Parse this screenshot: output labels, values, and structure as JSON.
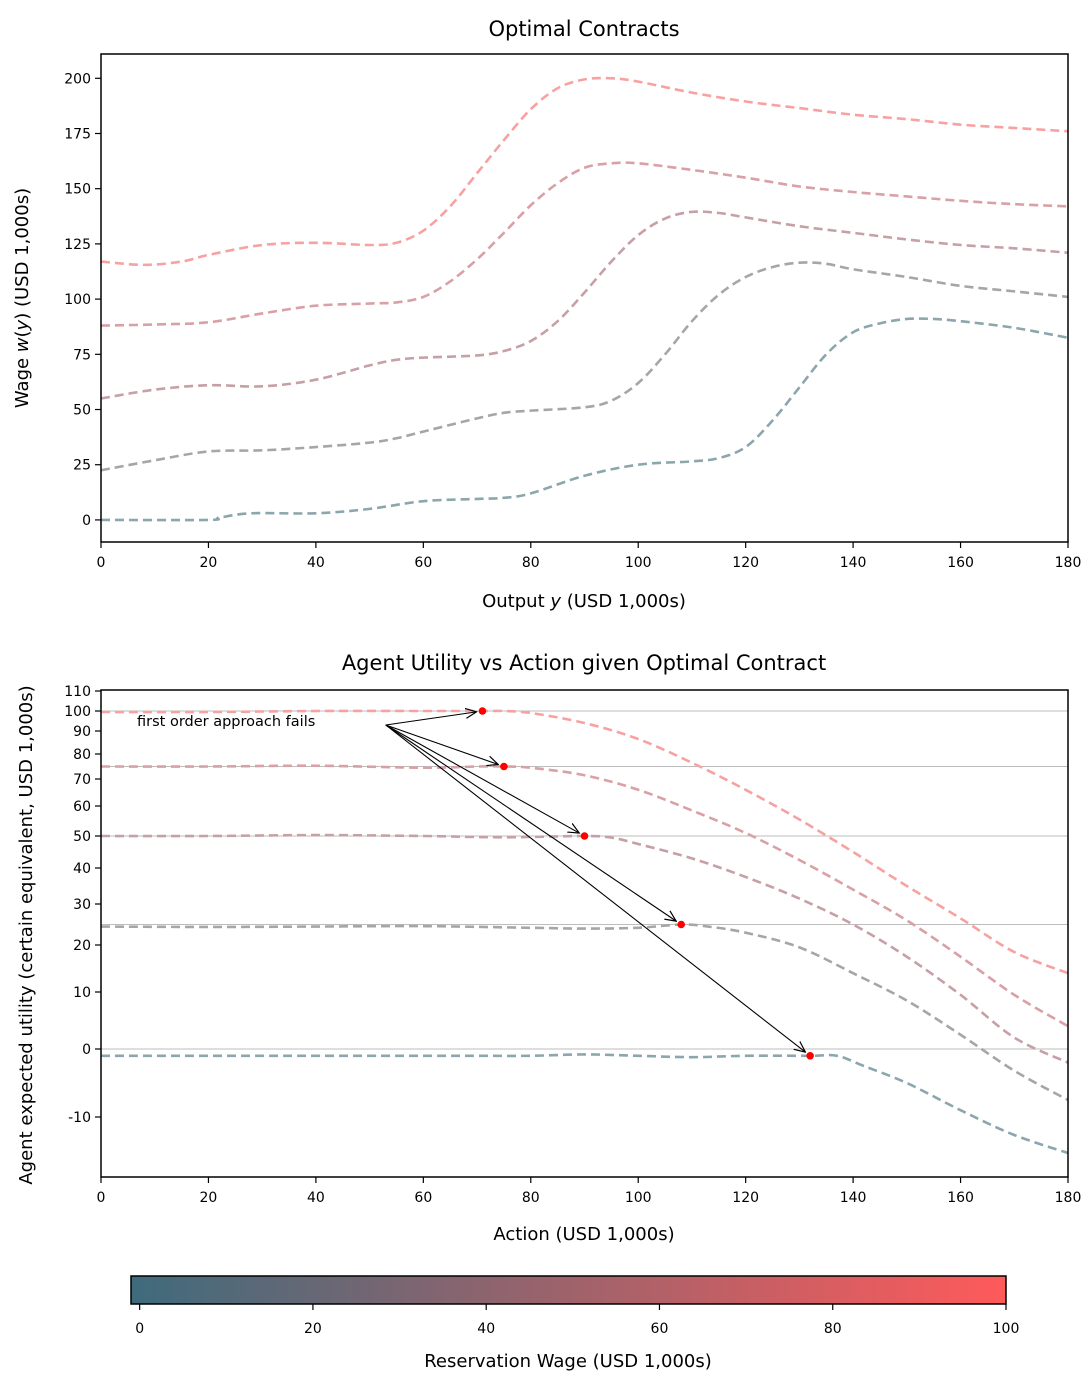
{
  "colorbar": {
    "label": "Reservation Wage (USD 1,000s)",
    "min": -1,
    "max": 100,
    "ticks": [
      0,
      20,
      40,
      60,
      80,
      100
    ],
    "color_low": "#3e6b7c",
    "color_high": "#ff5a5a"
  },
  "chart_data": [
    {
      "type": "line",
      "title": "Optimal Contracts",
      "xlabel": "Output y (USD 1,000s)",
      "ylabel": "Wage w(y) (USD 1,000s)",
      "xlim": [
        0,
        180
      ],
      "ylim": [
        -10,
        211
      ],
      "xticks": [
        0,
        20,
        40,
        60,
        80,
        100,
        120,
        140,
        160,
        180
      ],
      "yticks": [
        0,
        25,
        50,
        75,
        100,
        125,
        150,
        175,
        200
      ],
      "grid": false,
      "series": [
        {
          "reservation_wage": 0,
          "color": "#8ba6ad",
          "points": [
            [
              0,
              0
            ],
            [
              20,
              0
            ],
            [
              22,
              1
            ],
            [
              28,
              3
            ],
            [
              40,
              3
            ],
            [
              50,
              5
            ],
            [
              60,
              8.5
            ],
            [
              70,
              9.5
            ],
            [
              75,
              10
            ],
            [
              80,
              12
            ],
            [
              90,
              20
            ],
            [
              100,
              25
            ],
            [
              110,
              26.5
            ],
            [
              115,
              28
            ],
            [
              120,
              33
            ],
            [
              125,
              45
            ],
            [
              130,
              60
            ],
            [
              135,
              75
            ],
            [
              140,
              85
            ],
            [
              145,
              89
            ],
            [
              150,
              91
            ],
            [
              155,
              91
            ],
            [
              160,
              90
            ],
            [
              170,
              87
            ],
            [
              180,
              82.5
            ]
          ]
        },
        {
          "reservation_wage": 25,
          "color": "#a6a6a6",
          "points": [
            [
              0,
              22.5
            ],
            [
              10,
              27
            ],
            [
              20,
              31
            ],
            [
              30,
              31.5
            ],
            [
              40,
              33
            ],
            [
              50,
              35
            ],
            [
              55,
              37
            ],
            [
              60,
              40
            ],
            [
              70,
              46
            ],
            [
              75,
              48.5
            ],
            [
              80,
              49.5
            ],
            [
              90,
              51
            ],
            [
              95,
              54
            ],
            [
              100,
              62
            ],
            [
              105,
              75
            ],
            [
              110,
              90
            ],
            [
              115,
              102
            ],
            [
              120,
              110
            ],
            [
              125,
              114.5
            ],
            [
              130,
              116.5
            ],
            [
              135,
              116
            ],
            [
              140,
              113.5
            ],
            [
              150,
              110
            ],
            [
              160,
              106
            ],
            [
              170,
              103.5
            ],
            [
              180,
              101
            ]
          ]
        },
        {
          "reservation_wage": 50,
          "color": "#c6a0a5",
          "points": [
            [
              0,
              55
            ],
            [
              10,
              59
            ],
            [
              20,
              61
            ],
            [
              30,
              60.5
            ],
            [
              40,
              63.5
            ],
            [
              50,
              70
            ],
            [
              55,
              72.5
            ],
            [
              60,
              73.5
            ],
            [
              70,
              74.5
            ],
            [
              75,
              76.5
            ],
            [
              80,
              81
            ],
            [
              85,
              90
            ],
            [
              90,
              103
            ],
            [
              95,
              117
            ],
            [
              100,
              129
            ],
            [
              105,
              136.5
            ],
            [
              110,
              139.5
            ],
            [
              115,
              139
            ],
            [
              120,
              137
            ],
            [
              130,
              133
            ],
            [
              140,
              130
            ],
            [
              150,
              127
            ],
            [
              160,
              124.5
            ],
            [
              170,
              123
            ],
            [
              180,
              121
            ]
          ]
        },
        {
          "reservation_wage": 75,
          "color": "#d9a0a5",
          "points": [
            [
              0,
              88
            ],
            [
              10,
              88.5
            ],
            [
              20,
              89.5
            ],
            [
              30,
              93.5
            ],
            [
              40,
              97
            ],
            [
              50,
              98
            ],
            [
              55,
              98.5
            ],
            [
              60,
              101
            ],
            [
              65,
              108
            ],
            [
              70,
              118
            ],
            [
              75,
              130
            ],
            [
              80,
              142.5
            ],
            [
              85,
              152.5
            ],
            [
              90,
              159.5
            ],
            [
              95,
              161.5
            ],
            [
              100,
              161.5
            ],
            [
              110,
              158.5
            ],
            [
              120,
              155
            ],
            [
              130,
              151
            ],
            [
              140,
              148.5
            ],
            [
              150,
              146.5
            ],
            [
              160,
              144.5
            ],
            [
              170,
              143
            ],
            [
              180,
              142
            ]
          ]
        },
        {
          "reservation_wage": 100,
          "color": "#f8a1a1",
          "points": [
            [
              0,
              117
            ],
            [
              8,
              115.5
            ],
            [
              15,
              117
            ],
            [
              20,
              120
            ],
            [
              30,
              124.5
            ],
            [
              40,
              125.5
            ],
            [
              50,
              124.5
            ],
            [
              55,
              125.5
            ],
            [
              60,
              131
            ],
            [
              65,
              142
            ],
            [
              70,
              157
            ],
            [
              75,
              172
            ],
            [
              80,
              186
            ],
            [
              85,
              195.5
            ],
            [
              90,
              199.5
            ],
            [
              95,
              200
            ],
            [
              100,
              198.5
            ],
            [
              110,
              193.5
            ],
            [
              120,
              189.5
            ],
            [
              130,
              186.5
            ],
            [
              140,
              183.5
            ],
            [
              150,
              181.5
            ],
            [
              160,
              179
            ],
            [
              170,
              177.5
            ],
            [
              180,
              176
            ]
          ]
        }
      ]
    },
    {
      "type": "line",
      "title": "Agent Utility vs Action given Optimal Contract",
      "xlabel": "Action (USD 1,000s)",
      "ylabel": "Agent expected utility (certain equivalent, USD 1,000s)",
      "xlim": [
        0,
        180
      ],
      "yscale": "log-like (symmetric)",
      "xticks": [
        0,
        20,
        40,
        60,
        80,
        100,
        120,
        140,
        160,
        180
      ],
      "yticks": [
        -10,
        0,
        10,
        20,
        30,
        40,
        50,
        60,
        70,
        80,
        90,
        100,
        110
      ],
      "ytick_labels": [
        "-10",
        "0",
        "10",
        "20",
        "30",
        "40",
        "50",
        "60",
        "70",
        "80",
        "90",
        "100",
        "110"
      ],
      "grid": false,
      "reference_lines": [
        0,
        25,
        50,
        75,
        100
      ],
      "annotation": {
        "text": "first order approach fails",
        "arrow_from": [
          53,
          93
        ],
        "arrow_targets": [
          [
            71,
            100
          ],
          [
            75,
            75
          ],
          [
            90,
            50
          ],
          [
            108,
            25
          ],
          [
            132,
            -1
          ]
        ]
      },
      "optimal_points": [
        {
          "x": 71,
          "y": 100
        },
        {
          "x": 75,
          "y": 75
        },
        {
          "x": 90,
          "y": 50
        },
        {
          "x": 108,
          "y": 25
        },
        {
          "x": 132,
          "y": -1
        }
      ],
      "series": [
        {
          "reservation_wage": 0,
          "color": "#8ba6ad",
          "points": [
            [
              0,
              -1
            ],
            [
              40,
              -1
            ],
            [
              60,
              -1
            ],
            [
              70,
              -1
            ],
            [
              80,
              -1
            ],
            [
              90,
              -0.8
            ],
            [
              100,
              -1
            ],
            [
              110,
              -1.2
            ],
            [
              120,
              -1
            ],
            [
              132,
              -1
            ],
            [
              137,
              -1
            ],
            [
              142,
              -2.5
            ],
            [
              150,
              -5
            ],
            [
              160,
              -9
            ],
            [
              170,
              -13.5
            ],
            [
              180,
              -17
            ]
          ]
        },
        {
          "reservation_wage": 25,
          "color": "#a6a6a6",
          "points": [
            [
              0,
              24.5
            ],
            [
              20,
              24.4
            ],
            [
              40,
              24.5
            ],
            [
              60,
              24.6
            ],
            [
              80,
              24.2
            ],
            [
              90,
              24
            ],
            [
              100,
              24.2
            ],
            [
              108,
              25
            ],
            [
              113,
              24.5
            ],
            [
              120,
              23
            ],
            [
              130,
              19.5
            ],
            [
              140,
              14
            ],
            [
              150,
              8.5
            ],
            [
              160,
              2.5
            ],
            [
              170,
              -3.2
            ],
            [
              180,
              -7.5
            ]
          ]
        },
        {
          "reservation_wage": 50,
          "color": "#c6a0a5",
          "points": [
            [
              0,
              50
            ],
            [
              20,
              50
            ],
            [
              40,
              50.3
            ],
            [
              60,
              50
            ],
            [
              75,
              49.6
            ],
            [
              90,
              50
            ],
            [
              95,
              49.5
            ],
            [
              100,
              47.5
            ],
            [
              110,
              43
            ],
            [
              120,
              37.5
            ],
            [
              130,
              31.5
            ],
            [
              140,
              25
            ],
            [
              150,
              17.5
            ],
            [
              160,
              9.5
            ],
            [
              170,
              2
            ],
            [
              180,
              -2
            ]
          ]
        },
        {
          "reservation_wage": 75,
          "color": "#d9a0a5",
          "points": [
            [
              0,
              75
            ],
            [
              20,
              75
            ],
            [
              40,
              75.3
            ],
            [
              60,
              74.5
            ],
            [
              70,
              75
            ],
            [
              75,
              75
            ],
            [
              80,
              74.5
            ],
            [
              90,
              71.5
            ],
            [
              100,
              66
            ],
            [
              110,
              58.5
            ],
            [
              120,
              51
            ],
            [
              130,
              42.5
            ],
            [
              140,
              34
            ],
            [
              150,
              26
            ],
            [
              160,
              17.5
            ],
            [
              170,
              9.5
            ],
            [
              180,
              4
            ]
          ]
        },
        {
          "reservation_wage": 100,
          "color": "#f8a1a1",
          "points": [
            [
              0,
              99.5
            ],
            [
              20,
              99.5
            ],
            [
              40,
              100
            ],
            [
              60,
              100
            ],
            [
              71,
              100
            ],
            [
              75,
              100
            ],
            [
              80,
              99
            ],
            [
              90,
              94
            ],
            [
              100,
              86.5
            ],
            [
              110,
              76.5
            ],
            [
              120,
              66
            ],
            [
              130,
              55.5
            ],
            [
              140,
              45
            ],
            [
              150,
              35
            ],
            [
              160,
              26.5
            ],
            [
              170,
              18.5
            ],
            [
              180,
              14
            ]
          ]
        }
      ]
    }
  ]
}
